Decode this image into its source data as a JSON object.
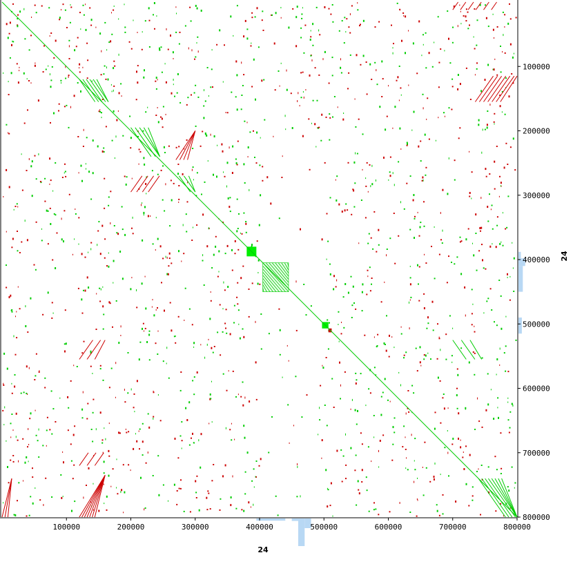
{
  "chart_data": {
    "type": "scatter",
    "subtype": "dotplot",
    "xlabel": "24",
    "ylabel": "24",
    "xlim": [
      0,
      800000
    ],
    "ylim": [
      0,
      800000
    ],
    "y_inverted": true,
    "x_ticks": [
      {
        "value": 100000,
        "label": "100000"
      },
      {
        "value": 200000,
        "label": "200000"
      },
      {
        "value": 300000,
        "label": "300000"
      },
      {
        "value": 400000,
        "label": "400000"
      },
      {
        "value": 500000,
        "label": "500000"
      },
      {
        "value": 600000,
        "label": "600000"
      },
      {
        "value": 700000,
        "label": "700000"
      },
      {
        "value": 800000,
        "label": "800000"
      }
    ],
    "y_ticks": [
      {
        "value": 100000,
        "label": "100000"
      },
      {
        "value": 200000,
        "label": "200000"
      },
      {
        "value": 300000,
        "label": "300000"
      },
      {
        "value": 400000,
        "label": "400000"
      },
      {
        "value": 500000,
        "label": "500000"
      },
      {
        "value": 600000,
        "label": "600000"
      },
      {
        "value": 700000,
        "label": "700000"
      },
      {
        "value": 800000,
        "label": "800000"
      }
    ],
    "colors": {
      "forward": "#00cc00",
      "reverse": "#cc0000",
      "block": "#00ee00",
      "density": "#b8d8f4",
      "axis": "#000000"
    },
    "diagonal": {
      "x": [
        0,
        800000
      ],
      "y": [
        0,
        800000
      ]
    },
    "blocks": [
      {
        "x": [
          380000,
          395000
        ],
        "y": [
          380000,
          395000
        ],
        "kind": "forward"
      },
      {
        "x": [
          405000,
          445000
        ],
        "y": [
          405000,
          450000
        ],
        "kind": "forward-hatched"
      },
      {
        "x": [
          497000,
          507000
        ],
        "y": [
          497000,
          507000
        ],
        "kind": "forward"
      },
      {
        "x": [
          507000,
          512000
        ],
        "y": [
          507000,
          513000
        ],
        "kind": "reverse"
      }
    ],
    "segments": [
      {
        "x": [
          120000,
          165000
        ],
        "y": [
          120000,
          155000
        ],
        "kind": "forward",
        "n": 6
      },
      {
        "x": [
          200000,
          245000
        ],
        "y": [
          195000,
          240000
        ],
        "kind": "forward",
        "n": 5
      },
      {
        "x": [
          270000,
          300000
        ],
        "y": [
          200000,
          245000
        ],
        "kind": "reverse",
        "n": 4
      },
      {
        "x": [
          200000,
          245000
        ],
        "y": [
          270000,
          295000
        ],
        "kind": "reverse",
        "n": 4
      },
      {
        "x": [
          275000,
          300000
        ],
        "y": [
          270000,
          295000
        ],
        "kind": "forward",
        "n": 3
      },
      {
        "x": [
          735000,
          800000
        ],
        "y": [
          115000,
          155000
        ],
        "kind": "reverse",
        "n": 7
      },
      {
        "x": [
          120000,
          160000
        ],
        "y": [
          735000,
          800000
        ],
        "kind": "reverse",
        "n": 7
      },
      {
        "x": [
          740000,
          800000
        ],
        "y": [
          740000,
          800000
        ],
        "kind": "forward",
        "n": 8
      },
      {
        "x": [
          0,
          15000
        ],
        "y": [
          740000,
          800000
        ],
        "kind": "reverse",
        "n": 3
      },
      {
        "x": [
          700000,
          800000
        ],
        "y": [
          0,
          12000
        ],
        "kind": "reverse",
        "n": 6
      },
      {
        "x": [
          120000,
          160000
        ],
        "y": [
          700000,
          720000
        ],
        "kind": "reverse",
        "n": 3
      },
      {
        "x": [
          120000,
          160000
        ],
        "y": [
          525000,
          555000
        ],
        "kind": "reverse",
        "n": 3
      },
      {
        "x": [
          700000,
          745000
        ],
        "y": [
          525000,
          555000
        ],
        "kind": "forward",
        "n": 3
      }
    ],
    "density_x": [
      {
        "x": [
          450000,
          460000
        ],
        "h": 0.09
      },
      {
        "x": [
          460000,
          470000
        ],
        "h": 1.0
      },
      {
        "x": [
          470000,
          480000
        ],
        "h": 0.35
      },
      {
        "x": [
          395000,
          440000
        ],
        "h": 0.08
      }
    ],
    "density_y": [
      {
        "y": [
          388000,
          398000
        ],
        "w": 0.25
      },
      {
        "y": [
          398000,
          410000
        ],
        "w": 0.7
      },
      {
        "y": [
          410000,
          450000
        ],
        "w": 0.45
      },
      {
        "y": [
          490000,
          515000
        ],
        "w": 0.35
      }
    ]
  }
}
